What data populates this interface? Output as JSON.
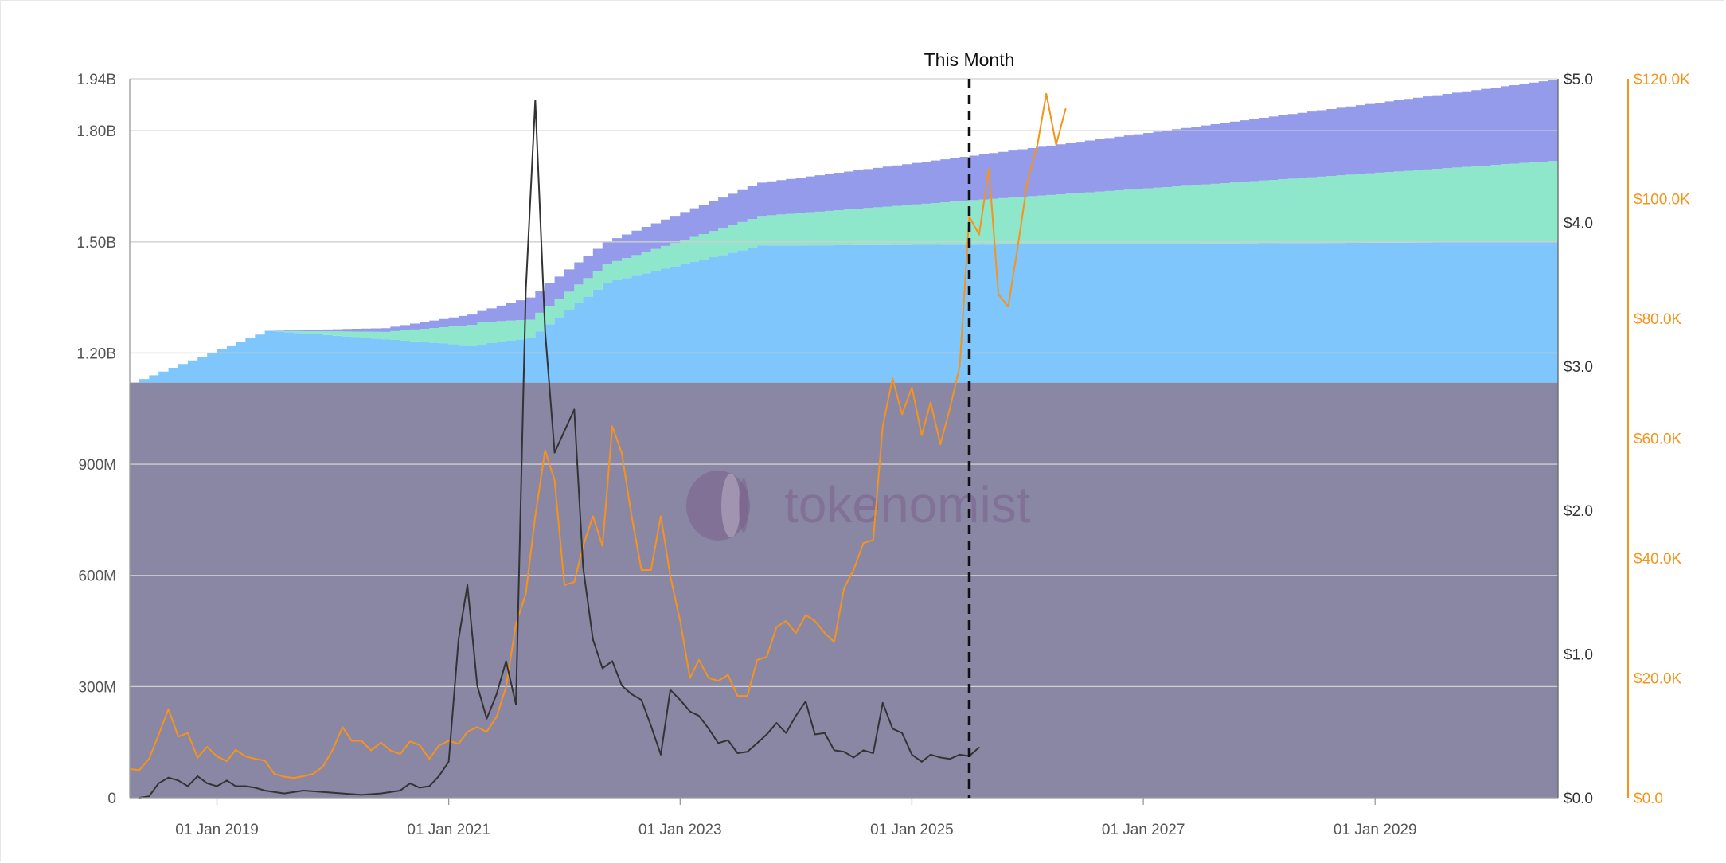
{
  "chart_data": {
    "type": "area",
    "annotation": "This Month",
    "watermark": "tokenomist",
    "colors": {
      "base_area": "#8a87a5",
      "blue_area": "#7fc6fd",
      "green_area": "#8ee7cb",
      "purple_area": "#949bea",
      "price_line": "#333333",
      "btc_line": "#f7931a",
      "grid": "#cfcfcf"
    },
    "left_axis": {
      "min": 0,
      "max": 1940000000,
      "ticks": [
        {
          "value": 0,
          "label": "0"
        },
        {
          "value": 300000000,
          "label": "300M"
        },
        {
          "value": 600000000,
          "label": "600M"
        },
        {
          "value": 900000000,
          "label": "900M"
        },
        {
          "value": 1200000000,
          "label": "1.20B"
        },
        {
          "value": 1500000000,
          "label": "1.50B"
        },
        {
          "value": 1800000000,
          "label": "1.80B"
        },
        {
          "value": 1940000000,
          "label": "1.94B"
        }
      ]
    },
    "right_axis": {
      "min": 0,
      "max": 5.0,
      "ticks": [
        {
          "value": 0,
          "label": "$0.0"
        },
        {
          "value": 1,
          "label": "$1.0"
        },
        {
          "value": 2,
          "label": "$2.0"
        },
        {
          "value": 3,
          "label": "$3.0"
        },
        {
          "value": 4,
          "label": "$4.0"
        },
        {
          "value": 5,
          "label": "$5.0"
        }
      ]
    },
    "btc_axis": {
      "min": 0,
      "max": 120000,
      "ticks": [
        {
          "value": 0,
          "label": "$0.0"
        },
        {
          "value": 20000,
          "label": "$20.0K"
        },
        {
          "value": 40000,
          "label": "$40.0K"
        },
        {
          "value": 60000,
          "label": "$60.0K"
        },
        {
          "value": 80000,
          "label": "$80.0K"
        },
        {
          "value": 100000,
          "label": "$100.0K"
        },
        {
          "value": 120000,
          "label": "$120.0K"
        }
      ]
    },
    "x_axis": {
      "min": "2018-04-01",
      "max": "2030-08-01",
      "ticks": [
        {
          "date": "2019-01-01",
          "label": "01 Jan 2019"
        },
        {
          "date": "2021-01-01",
          "label": "01 Jan 2021"
        },
        {
          "date": "2023-01-01",
          "label": "01 Jan 2023"
        },
        {
          "date": "2025-01-01",
          "label": "01 Jan 2025"
        },
        {
          "date": "2027-01-01",
          "label": "01 Jan 2027"
        },
        {
          "date": "2029-01-01",
          "label": "01 Jan 2029"
        }
      ]
    },
    "this_month": "2025-07-01",
    "stacked_series": [
      {
        "key": "base",
        "color": "#8a87a5",
        "points": [
          [
            "2018-04-01",
            1120000000
          ],
          [
            "2030-08-01",
            1120000000
          ]
        ]
      },
      {
        "key": "blue",
        "color": "#7fc6fd",
        "points": [
          [
            "2018-04-01",
            0
          ],
          [
            "2019-06-01",
            140000000
          ],
          [
            "2021-03-01",
            100000000
          ],
          [
            "2021-09-01",
            120000000
          ],
          [
            "2022-05-01",
            270000000
          ],
          [
            "2023-09-01",
            370000000
          ],
          [
            "2030-08-01",
            380000000
          ]
        ]
      },
      {
        "key": "green",
        "color": "#8ee7cb",
        "points": [
          [
            "2018-04-01",
            0
          ],
          [
            "2019-06-01",
            0
          ],
          [
            "2020-06-01",
            20000000
          ],
          [
            "2021-04-01",
            60000000
          ],
          [
            "2021-09-01",
            50000000
          ],
          [
            "2022-05-01",
            50000000
          ],
          [
            "2023-09-01",
            80000000
          ],
          [
            "2025-07-01",
            120000000
          ],
          [
            "2030-08-01",
            220000000
          ]
        ]
      },
      {
        "key": "purple",
        "color": "#949bea",
        "points": [
          [
            "2018-04-01",
            0
          ],
          [
            "2019-06-01",
            0
          ],
          [
            "2020-06-01",
            10000000
          ],
          [
            "2021-04-01",
            30000000
          ],
          [
            "2021-09-01",
            60000000
          ],
          [
            "2022-05-01",
            60000000
          ],
          [
            "2023-09-01",
            90000000
          ],
          [
            "2025-07-01",
            120000000
          ],
          [
            "2030-08-01",
            220000000
          ]
        ]
      }
    ],
    "price_series": {
      "color": "#333333",
      "axis": "right",
      "points": [
        [
          "2018-05-01",
          0.0
        ],
        [
          "2018-06-01",
          0.01
        ],
        [
          "2018-07-01",
          0.1
        ],
        [
          "2018-08-01",
          0.14
        ],
        [
          "2018-09-01",
          0.12
        ],
        [
          "2018-10-01",
          0.08
        ],
        [
          "2018-11-01",
          0.15
        ],
        [
          "2018-12-01",
          0.1
        ],
        [
          "2019-01-01",
          0.08
        ],
        [
          "2019-02-01",
          0.12
        ],
        [
          "2019-03-01",
          0.08
        ],
        [
          "2019-04-01",
          0.08
        ],
        [
          "2019-05-01",
          0.07
        ],
        [
          "2019-06-01",
          0.05
        ],
        [
          "2019-08-01",
          0.03
        ],
        [
          "2019-10-01",
          0.05
        ],
        [
          "2019-12-01",
          0.04
        ],
        [
          "2020-02-01",
          0.03
        ],
        [
          "2020-04-01",
          0.02
        ],
        [
          "2020-06-01",
          0.03
        ],
        [
          "2020-08-01",
          0.05
        ],
        [
          "2020-09-01",
          0.1
        ],
        [
          "2020-10-01",
          0.07
        ],
        [
          "2020-11-01",
          0.08
        ],
        [
          "2020-12-01",
          0.15
        ],
        [
          "2021-01-01",
          0.25
        ],
        [
          "2021-02-01",
          1.1
        ],
        [
          "2021-03-01",
          1.48
        ],
        [
          "2021-04-01",
          0.78
        ],
        [
          "2021-05-01",
          0.55
        ],
        [
          "2021-06-01",
          0.72
        ],
        [
          "2021-07-01",
          0.95
        ],
        [
          "2021-08-01",
          0.65
        ],
        [
          "2021-09-01",
          3.52
        ],
        [
          "2021-10-01",
          4.85
        ],
        [
          "2021-11-01",
          3.25
        ],
        [
          "2021-12-01",
          2.4
        ],
        [
          "2022-01-01",
          2.55
        ],
        [
          "2022-02-01",
          2.7
        ],
        [
          "2022-03-01",
          1.6
        ],
        [
          "2022-04-01",
          1.1
        ],
        [
          "2022-05-01",
          0.9
        ],
        [
          "2022-06-01",
          0.95
        ],
        [
          "2022-07-01",
          0.78
        ],
        [
          "2022-08-01",
          0.72
        ],
        [
          "2022-09-01",
          0.68
        ],
        [
          "2022-10-01",
          0.5
        ],
        [
          "2022-11-01",
          0.3
        ],
        [
          "2022-12-01",
          0.75
        ],
        [
          "2023-01-01",
          0.68
        ],
        [
          "2023-02-01",
          0.6
        ],
        [
          "2023-03-01",
          0.57
        ],
        [
          "2023-04-01",
          0.48
        ],
        [
          "2023-05-01",
          0.38
        ],
        [
          "2023-06-01",
          0.4
        ],
        [
          "2023-07-01",
          0.31
        ],
        [
          "2023-08-01",
          0.32
        ],
        [
          "2023-09-01",
          0.38
        ],
        [
          "2023-10-01",
          0.44
        ],
        [
          "2023-11-01",
          0.52
        ],
        [
          "2023-12-01",
          0.45
        ],
        [
          "2024-01-01",
          0.57
        ],
        [
          "2024-02-01",
          0.67
        ],
        [
          "2024-03-01",
          0.44
        ],
        [
          "2024-04-01",
          0.45
        ],
        [
          "2024-05-01",
          0.33
        ],
        [
          "2024-06-01",
          0.32
        ],
        [
          "2024-07-01",
          0.28
        ],
        [
          "2024-08-01",
          0.33
        ],
        [
          "2024-09-01",
          0.31
        ],
        [
          "2024-10-01",
          0.66
        ],
        [
          "2024-11-01",
          0.48
        ],
        [
          "2024-12-01",
          0.45
        ],
        [
          "2025-01-01",
          0.3
        ],
        [
          "2025-02-01",
          0.25
        ],
        [
          "2025-03-01",
          0.3
        ],
        [
          "2025-04-01",
          0.28
        ],
        [
          "2025-05-01",
          0.27
        ],
        [
          "2025-06-01",
          0.3
        ],
        [
          "2025-07-01",
          0.29
        ],
        [
          "2025-08-01",
          0.35
        ]
      ]
    },
    "btc_series": {
      "color": "#f7931a",
      "axis": "btc",
      "points": [
        [
          "2018-04-01",
          4800
        ],
        [
          "2018-05-01",
          4600
        ],
        [
          "2018-06-01",
          6500
        ],
        [
          "2018-07-01",
          10500
        ],
        [
          "2018-08-01",
          14800
        ],
        [
          "2018-09-01",
          10200
        ],
        [
          "2018-10-01",
          10800
        ],
        [
          "2018-11-01",
          6700
        ],
        [
          "2018-12-01",
          8500
        ],
        [
          "2019-01-01",
          6900
        ],
        [
          "2019-02-01",
          6100
        ],
        [
          "2019-03-01",
          8000
        ],
        [
          "2019-04-01",
          6900
        ],
        [
          "2019-05-01",
          6500
        ],
        [
          "2019-06-01",
          6200
        ],
        [
          "2019-07-01",
          4000
        ],
        [
          "2019-08-01",
          3500
        ],
        [
          "2019-09-01",
          3300
        ],
        [
          "2019-10-01",
          3600
        ],
        [
          "2019-11-01",
          4000
        ],
        [
          "2019-12-01",
          5200
        ],
        [
          "2020-01-01",
          8000
        ],
        [
          "2020-02-01",
          11800
        ],
        [
          "2020-03-01",
          9500
        ],
        [
          "2020-04-01",
          9500
        ],
        [
          "2020-05-01",
          7900
        ],
        [
          "2020-06-01",
          9200
        ],
        [
          "2020-07-01",
          7900
        ],
        [
          "2020-08-01",
          7300
        ],
        [
          "2020-09-01",
          9400
        ],
        [
          "2020-10-01",
          8800
        ],
        [
          "2020-11-01",
          6500
        ],
        [
          "2020-12-01",
          8700
        ],
        [
          "2021-01-01",
          9500
        ],
        [
          "2021-02-01",
          9000
        ],
        [
          "2021-03-01",
          11000
        ],
        [
          "2021-04-01",
          11800
        ],
        [
          "2021-05-01",
          11000
        ],
        [
          "2021-06-01",
          13500
        ],
        [
          "2021-07-01",
          18500
        ],
        [
          "2021-08-01",
          29000
        ],
        [
          "2021-09-01",
          34000
        ],
        [
          "2021-10-01",
          47000
        ],
        [
          "2021-11-01",
          58000
        ],
        [
          "2021-12-01",
          53000
        ],
        [
          "2022-01-01",
          35500
        ],
        [
          "2022-02-01",
          36000
        ],
        [
          "2022-03-01",
          42000
        ],
        [
          "2022-04-01",
          47000
        ],
        [
          "2022-05-01",
          42000
        ],
        [
          "2022-06-01",
          62000
        ],
        [
          "2022-07-01",
          57500
        ],
        [
          "2022-08-01",
          47000
        ],
        [
          "2022-09-01",
          38000
        ],
        [
          "2022-10-01",
          38000
        ],
        [
          "2022-11-01",
          47000
        ],
        [
          "2022-12-01",
          37000
        ],
        [
          "2023-01-01",
          29500
        ],
        [
          "2023-02-01",
          20000
        ],
        [
          "2023-03-01",
          23000
        ],
        [
          "2023-04-01",
          20000
        ],
        [
          "2023-05-01",
          19500
        ],
        [
          "2023-06-01",
          20500
        ],
        [
          "2023-07-01",
          17000
        ],
        [
          "2023-08-01",
          17000
        ],
        [
          "2023-09-01",
          23000
        ],
        [
          "2023-10-01",
          23500
        ],
        [
          "2023-11-01",
          28500
        ],
        [
          "2023-12-01",
          29500
        ],
        [
          "2024-01-01",
          27500
        ],
        [
          "2024-02-01",
          30500
        ],
        [
          "2024-03-01",
          29500
        ],
        [
          "2024-04-01",
          27500
        ],
        [
          "2024-05-01",
          26000
        ],
        [
          "2024-06-01",
          35000
        ],
        [
          "2024-07-01",
          38000
        ],
        [
          "2024-08-01",
          42500
        ],
        [
          "2024-09-01",
          43000
        ],
        [
          "2024-10-01",
          62000
        ],
        [
          "2024-11-01",
          70000
        ],
        [
          "2024-12-01",
          64000
        ],
        [
          "2025-01-01",
          68500
        ],
        [
          "2025-02-01",
          60500
        ],
        [
          "2025-03-01",
          66000
        ],
        [
          "2025-04-01",
          59000
        ],
        [
          "2025-05-01",
          65000
        ],
        [
          "2025-06-01",
          72000
        ],
        [
          "2025-07-01",
          97000
        ],
        [
          "2025-08-01",
          94000
        ],
        [
          "2025-09-01",
          105000
        ],
        [
          "2025-10-01",
          84000
        ],
        [
          "2025-11-01",
          82000
        ],
        [
          "2025-12-01",
          92000
        ],
        [
          "2026-01-01",
          103000
        ],
        [
          "2026-02-01",
          109000
        ],
        [
          "2026-03-01",
          117500
        ],
        [
          "2026-04-01",
          109000
        ],
        [
          "2026-05-01",
          115000
        ]
      ]
    }
  }
}
